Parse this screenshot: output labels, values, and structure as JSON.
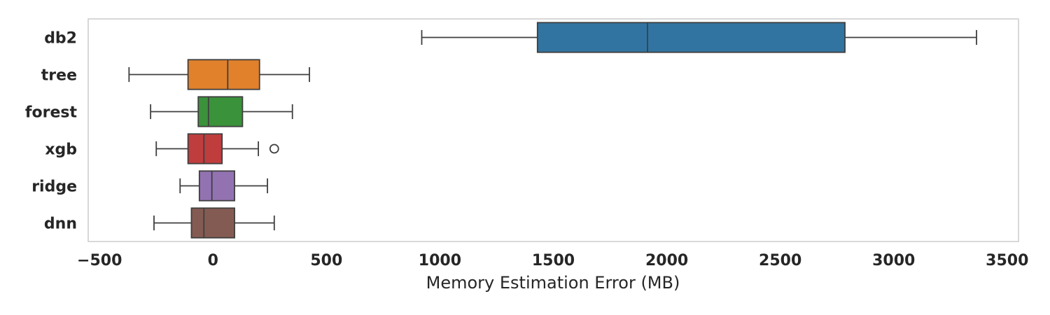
{
  "chart_data": {
    "type": "box",
    "orientation": "horizontal",
    "title": "",
    "xlabel": "Memory Estimation Error (MB)",
    "ylabel": "",
    "xlim": [
      -550,
      3550
    ],
    "xticks": [
      -500,
      0,
      500,
      1000,
      1500,
      2000,
      2500,
      3000,
      3500
    ],
    "xtick_labels": [
      "−500",
      "0",
      "500",
      "1000",
      "1500",
      "2000",
      "2500",
      "3000",
      "3500"
    ],
    "grid": false,
    "legend": "none",
    "categories": [
      "db2",
      "tree",
      "forest",
      "xgb",
      "ridge",
      "dnn"
    ],
    "series": [
      {
        "category": "db2",
        "whisker_low": 920,
        "q1": 1430,
        "median": 1915,
        "q3": 2785,
        "whisker_high": 3365,
        "outliers": [],
        "color": "#3274a1"
      },
      {
        "category": "tree",
        "whisker_low": -370,
        "q1": -110,
        "median": 65,
        "q3": 205,
        "whisker_high": 425,
        "outliers": [],
        "color": "#e1812c"
      },
      {
        "category": "forest",
        "whisker_low": -275,
        "q1": -65,
        "median": -20,
        "q3": 130,
        "whisker_high": 350,
        "outliers": [],
        "color": "#3a923a"
      },
      {
        "category": "xgb",
        "whisker_low": -250,
        "q1": -110,
        "median": -40,
        "q3": 40,
        "whisker_high": 200,
        "outliers": [
          270
        ],
        "color": "#c03d3e"
      },
      {
        "category": "ridge",
        "whisker_low": -145,
        "q1": -60,
        "median": -5,
        "q3": 95,
        "whisker_high": 240,
        "outliers": [],
        "color": "#9372b2"
      },
      {
        "category": "dnn",
        "whisker_low": -260,
        "q1": -95,
        "median": -40,
        "q3": 95,
        "whisker_high": 270,
        "outliers": [],
        "color": "#845b53"
      }
    ]
  }
}
